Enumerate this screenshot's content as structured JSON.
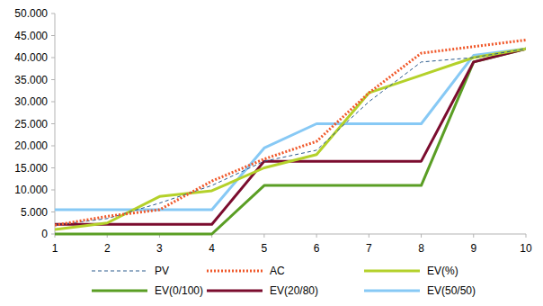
{
  "chart_data": {
    "type": "line",
    "x": [
      1,
      2,
      3,
      4,
      5,
      6,
      7,
      8,
      9,
      10
    ],
    "xlim": [
      1,
      10
    ],
    "xticks": [
      1,
      2,
      3,
      4,
      5,
      6,
      7,
      8,
      9,
      10
    ],
    "ylim": [
      0,
      50000
    ],
    "yticks": [
      0,
      {
        "value": 5000,
        "label": "5.000"
      },
      {
        "value": 10000,
        "label": "10.000"
      },
      {
        "value": 15000,
        "label": "15.000"
      },
      {
        "value": 20000,
        "label": "20.000"
      },
      {
        "value": 25000,
        "label": "25.000"
      },
      {
        "value": 30000,
        "label": "30.000"
      },
      {
        "value": 35000,
        "label": "35.000"
      },
      {
        "value": 40000,
        "label": "40.000"
      },
      {
        "value": 45000,
        "label": "45.000"
      },
      {
        "value": 50000,
        "label": "50.000"
      }
    ],
    "grid": false,
    "legend": "bottom",
    "series": [
      {
        "name": "PV",
        "color": "#2a5a8c",
        "line_style": "dashed",
        "values": [
          2000,
          3500,
          7000,
          11000,
          16500,
          19000,
          30000,
          39000,
          40000,
          42000
        ]
      },
      {
        "name": "AC",
        "color": "#f0582a",
        "line_style": "dotted",
        "values": [
          2000,
          4000,
          5500,
          12000,
          17000,
          21000,
          32000,
          41000,
          42500,
          44000
        ]
      },
      {
        "name": "EV(%)",
        "color": "#b4d12a",
        "line_style": "solid",
        "values": [
          1000,
          2500,
          8500,
          9800,
          15000,
          18000,
          32000,
          36000,
          40000,
          42000
        ]
      },
      {
        "name": "EV(0/100)",
        "color": "#5a9e24",
        "line_style": "solid",
        "values": [
          0,
          0,
          0,
          0,
          11000,
          11000,
          11000,
          11000,
          39000,
          42000
        ]
      },
      {
        "name": "EV(20/80)",
        "color": "#7b0c2e",
        "line_style": "solid",
        "values": [
          2200,
          2200,
          2200,
          2200,
          16500,
          16500,
          16500,
          16500,
          39000,
          42000
        ]
      },
      {
        "name": "EV(50/50)",
        "color": "#87c9f5",
        "line_style": "solid",
        "values": [
          5500,
          5500,
          5500,
          5500,
          19500,
          25000,
          25000,
          25000,
          40500,
          42000
        ]
      }
    ]
  }
}
